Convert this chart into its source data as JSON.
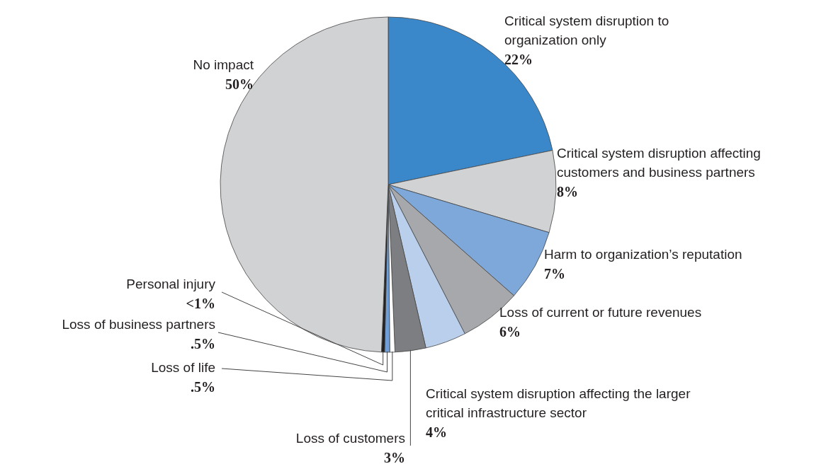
{
  "chart_data": {
    "type": "pie",
    "categories": [
      "Critical system disruption to organization only",
      "Critical system disruption affecting customers and business partners",
      "Harm to organization’s reputation",
      "Loss of current or future revenues",
      "Critical system disruption affecting the larger critical infrastructure sector",
      "Loss of customers",
      "Loss of life",
      "Loss of business partners",
      "Personal injury",
      "No impact"
    ],
    "values": [
      22,
      8,
      7,
      6,
      4,
      3,
      0.5,
      0.5,
      0.3,
      50
    ],
    "value_labels": [
      "22%",
      "8%",
      "7%",
      "6%",
      "4%",
      "3%",
      ".5%",
      ".5%",
      "<1%",
      "50%"
    ],
    "colors": [
      "#3a88c9",
      "#d1d2d4",
      "#7ea8da",
      "#a7a8ab",
      "#bacfeb",
      "#7d7e81",
      "#ffffff",
      "#6f9fd6",
      "#231f20",
      "#d1d2d4"
    ]
  }
}
